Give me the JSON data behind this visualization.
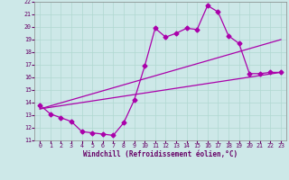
{
  "title": "",
  "xlabel": "Windchill (Refroidissement éolien,°C)",
  "xlim": [
    -0.5,
    23.5
  ],
  "ylim": [
    11,
    22
  ],
  "xticks": [
    0,
    1,
    2,
    3,
    4,
    5,
    6,
    7,
    8,
    9,
    10,
    11,
    12,
    13,
    14,
    15,
    16,
    17,
    18,
    19,
    20,
    21,
    22,
    23
  ],
  "yticks": [
    11,
    12,
    13,
    14,
    15,
    16,
    17,
    18,
    19,
    20,
    21,
    22
  ],
  "bg_color": "#cde8e8",
  "line_color": "#aa00aa",
  "grid_color": "#b0d8d0",
  "series1_x": [
    0,
    1,
    2,
    3,
    4,
    5,
    6,
    7,
    8,
    9,
    10,
    11,
    12,
    13,
    14,
    15,
    16,
    17,
    18,
    19,
    20,
    21,
    22,
    23
  ],
  "series1_y": [
    13.8,
    13.1,
    12.8,
    12.5,
    11.7,
    11.6,
    11.5,
    11.4,
    12.4,
    14.2,
    16.9,
    19.9,
    19.2,
    19.5,
    19.9,
    19.8,
    21.7,
    21.2,
    19.3,
    18.7,
    16.3,
    16.3,
    16.4,
    16.4
  ],
  "series2_x": [
    0,
    23
  ],
  "series2_y": [
    13.5,
    16.4
  ],
  "series3_x": [
    0,
    23
  ],
  "series3_y": [
    13.5,
    19.0
  ],
  "marker_size": 2.5,
  "line_width": 0.9
}
